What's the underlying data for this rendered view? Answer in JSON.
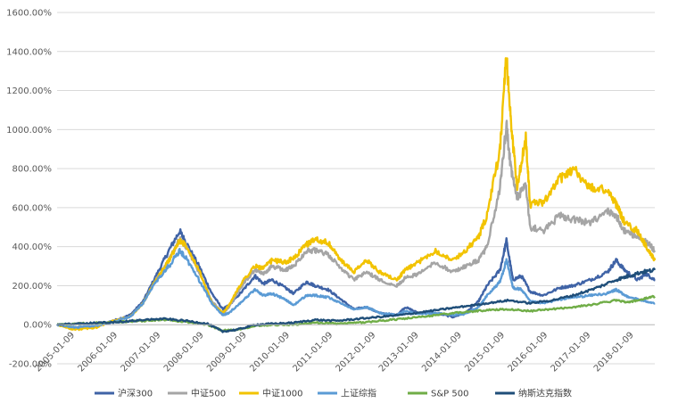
{
  "chart_data": {
    "type": "line",
    "ylim": [
      -200,
      1600
    ],
    "y_ticks": [
      "-200.00%",
      "0.00%",
      "200.00%",
      "400.00%",
      "600.00%",
      "800.00%",
      "1000.00%",
      "1200.00%",
      "1400.00%",
      "1600.00%"
    ],
    "y_tick_values": [
      -200,
      0,
      200,
      400,
      600,
      800,
      1000,
      1200,
      1400,
      1600
    ],
    "x_ticks": [
      "2005-01-09",
      "2006-01-09",
      "2007-01-09",
      "2008-01-09",
      "2009-01-09",
      "2010-01-09",
      "2011-01-09",
      "2012-01-09",
      "2013-01-09",
      "2014-01-09",
      "2015-01-09",
      "2016-01-09",
      "2017-01-09",
      "2018-01-09"
    ],
    "x_tick_values": [
      2005.0,
      2006.0,
      2007.0,
      2008.0,
      2009.0,
      2010.0,
      2011.0,
      2012.0,
      2013.0,
      2014.0,
      2015.0,
      2016.0,
      2017.0,
      2018.0
    ],
    "xlim": [
      2005.0,
      2018.9
    ],
    "grid": "horizontal",
    "legend": "bottom",
    "series": [
      {
        "name": "沪深300",
        "color": "#3F63A6",
        "points": [
          [
            2005.0,
            0
          ],
          [
            2005.4,
            -15
          ],
          [
            2005.9,
            -5
          ],
          [
            2006.3,
            20
          ],
          [
            2006.7,
            50
          ],
          [
            2007.0,
            120
          ],
          [
            2007.3,
            250
          ],
          [
            2007.6,
            380
          ],
          [
            2007.85,
            480
          ],
          [
            2008.0,
            420
          ],
          [
            2008.3,
            300
          ],
          [
            2008.6,
            160
          ],
          [
            2008.85,
            80
          ],
          [
            2009.0,
            100
          ],
          [
            2009.3,
            170
          ],
          [
            2009.6,
            250
          ],
          [
            2009.8,
            210
          ],
          [
            2010.0,
            230
          ],
          [
            2010.3,
            190
          ],
          [
            2010.5,
            160
          ],
          [
            2010.8,
            220
          ],
          [
            2011.0,
            200
          ],
          [
            2011.3,
            180
          ],
          [
            2011.6,
            130
          ],
          [
            2011.9,
            80
          ],
          [
            2012.2,
            90
          ],
          [
            2012.5,
            60
          ],
          [
            2012.9,
            50
          ],
          [
            2013.1,
            90
          ],
          [
            2013.4,
            60
          ],
          [
            2013.8,
            60
          ],
          [
            2014.2,
            40
          ],
          [
            2014.5,
            60
          ],
          [
            2014.8,
            120
          ],
          [
            2015.0,
            200
          ],
          [
            2015.3,
            280
          ],
          [
            2015.45,
            430
          ],
          [
            2015.6,
            230
          ],
          [
            2015.8,
            250
          ],
          [
            2016.0,
            170
          ],
          [
            2016.3,
            150
          ],
          [
            2016.7,
            190
          ],
          [
            2017.0,
            200
          ],
          [
            2017.4,
            230
          ],
          [
            2017.8,
            270
          ],
          [
            2018.0,
            330
          ],
          [
            2018.2,
            280
          ],
          [
            2018.5,
            230
          ],
          [
            2018.7,
            260
          ],
          [
            2018.9,
            230
          ]
        ]
      },
      {
        "name": "中证500",
        "color": "#A5A5A5",
        "points": [
          [
            2005.0,
            0
          ],
          [
            2005.4,
            -20
          ],
          [
            2005.9,
            -10
          ],
          [
            2006.3,
            20
          ],
          [
            2006.7,
            40
          ],
          [
            2007.0,
            110
          ],
          [
            2007.3,
            230
          ],
          [
            2007.6,
            330
          ],
          [
            2007.85,
            440
          ],
          [
            2008.0,
            400
          ],
          [
            2008.3,
            270
          ],
          [
            2008.6,
            120
          ],
          [
            2008.85,
            60
          ],
          [
            2009.0,
            90
          ],
          [
            2009.3,
            200
          ],
          [
            2009.6,
            280
          ],
          [
            2009.8,
            260
          ],
          [
            2010.0,
            300
          ],
          [
            2010.3,
            280
          ],
          [
            2010.5,
            300
          ],
          [
            2010.8,
            380
          ],
          [
            2011.0,
            380
          ],
          [
            2011.3,
            360
          ],
          [
            2011.6,
            290
          ],
          [
            2011.9,
            230
          ],
          [
            2012.2,
            270
          ],
          [
            2012.5,
            230
          ],
          [
            2012.9,
            200
          ],
          [
            2013.1,
            240
          ],
          [
            2013.4,
            260
          ],
          [
            2013.8,
            320
          ],
          [
            2014.2,
            270
          ],
          [
            2014.5,
            300
          ],
          [
            2014.8,
            330
          ],
          [
            2015.0,
            400
          ],
          [
            2015.3,
            700
          ],
          [
            2015.45,
            1030
          ],
          [
            2015.55,
            800
          ],
          [
            2015.7,
            650
          ],
          [
            2015.9,
            720
          ],
          [
            2016.0,
            500
          ],
          [
            2016.3,
            480
          ],
          [
            2016.7,
            560
          ],
          [
            2017.0,
            540
          ],
          [
            2017.4,
            520
          ],
          [
            2017.8,
            580
          ],
          [
            2018.0,
            560
          ],
          [
            2018.2,
            480
          ],
          [
            2018.5,
            450
          ],
          [
            2018.7,
            430
          ],
          [
            2018.9,
            380
          ]
        ]
      },
      {
        "name": "中证1000",
        "color": "#F2C300",
        "points": [
          [
            2005.0,
            0
          ],
          [
            2005.4,
            -25
          ],
          [
            2005.9,
            -15
          ],
          [
            2006.3,
            20
          ],
          [
            2006.7,
            40
          ],
          [
            2007.0,
            110
          ],
          [
            2007.3,
            230
          ],
          [
            2007.6,
            330
          ],
          [
            2007.85,
            430
          ],
          [
            2008.0,
            410
          ],
          [
            2008.3,
            280
          ],
          [
            2008.6,
            110
          ],
          [
            2008.85,
            60
          ],
          [
            2009.0,
            100
          ],
          [
            2009.3,
            220
          ],
          [
            2009.6,
            300
          ],
          [
            2009.8,
            290
          ],
          [
            2010.0,
            330
          ],
          [
            2010.3,
            320
          ],
          [
            2010.5,
            340
          ],
          [
            2010.8,
            410
          ],
          [
            2011.0,
            440
          ],
          [
            2011.3,
            420
          ],
          [
            2011.6,
            330
          ],
          [
            2011.9,
            270
          ],
          [
            2012.2,
            330
          ],
          [
            2012.5,
            270
          ],
          [
            2012.9,
            230
          ],
          [
            2013.1,
            280
          ],
          [
            2013.4,
            320
          ],
          [
            2013.8,
            380
          ],
          [
            2014.2,
            330
          ],
          [
            2014.5,
            380
          ],
          [
            2014.8,
            450
          ],
          [
            2015.0,
            560
          ],
          [
            2015.3,
            900
          ],
          [
            2015.45,
            1380
          ],
          [
            2015.55,
            1050
          ],
          [
            2015.7,
            700
          ],
          [
            2015.9,
            960
          ],
          [
            2016.0,
            620
          ],
          [
            2016.3,
            620
          ],
          [
            2016.7,
            750
          ],
          [
            2017.0,
            800
          ],
          [
            2017.4,
            700
          ],
          [
            2017.8,
            690
          ],
          [
            2018.0,
            620
          ],
          [
            2018.2,
            520
          ],
          [
            2018.5,
            480
          ],
          [
            2018.7,
            400
          ],
          [
            2018.9,
            330
          ]
        ]
      },
      {
        "name": "上证综指",
        "color": "#5B9BD5",
        "points": [
          [
            2005.0,
            0
          ],
          [
            2005.4,
            -15
          ],
          [
            2005.9,
            -5
          ],
          [
            2006.3,
            15
          ],
          [
            2006.7,
            40
          ],
          [
            2007.0,
            110
          ],
          [
            2007.3,
            220
          ],
          [
            2007.6,
            300
          ],
          [
            2007.85,
            380
          ],
          [
            2008.0,
            340
          ],
          [
            2008.3,
            230
          ],
          [
            2008.6,
            110
          ],
          [
            2008.85,
            50
          ],
          [
            2009.0,
            60
          ],
          [
            2009.3,
            120
          ],
          [
            2009.6,
            180
          ],
          [
            2009.8,
            150
          ],
          [
            2010.0,
            160
          ],
          [
            2010.3,
            130
          ],
          [
            2010.5,
            100
          ],
          [
            2010.8,
            150
          ],
          [
            2011.0,
            150
          ],
          [
            2011.3,
            140
          ],
          [
            2011.6,
            110
          ],
          [
            2011.9,
            80
          ],
          [
            2012.2,
            90
          ],
          [
            2012.5,
            60
          ],
          [
            2012.9,
            50
          ],
          [
            2013.1,
            70
          ],
          [
            2013.4,
            55
          ],
          [
            2013.8,
            60
          ],
          [
            2014.2,
            50
          ],
          [
            2014.5,
            55
          ],
          [
            2014.8,
            90
          ],
          [
            2015.0,
            150
          ],
          [
            2015.3,
            220
          ],
          [
            2015.45,
            330
          ],
          [
            2015.6,
            190
          ],
          [
            2015.8,
            180
          ],
          [
            2016.0,
            120
          ],
          [
            2016.3,
            110
          ],
          [
            2016.7,
            130
          ],
          [
            2017.0,
            140
          ],
          [
            2017.4,
            150
          ],
          [
            2017.8,
            160
          ],
          [
            2018.0,
            180
          ],
          [
            2018.2,
            150
          ],
          [
            2018.5,
            130
          ],
          [
            2018.7,
            120
          ],
          [
            2018.9,
            110
          ]
        ]
      },
      {
        "name": "S&P 500",
        "color": "#70AD47",
        "points": [
          [
            2005.0,
            0
          ],
          [
            2005.5,
            5
          ],
          [
            2006.0,
            10
          ],
          [
            2006.5,
            15
          ],
          [
            2007.0,
            20
          ],
          [
            2007.5,
            25
          ],
          [
            2008.0,
            15
          ],
          [
            2008.5,
            0
          ],
          [
            2008.85,
            -30
          ],
          [
            2009.2,
            -25
          ],
          [
            2009.6,
            -5
          ],
          [
            2010.0,
            0
          ],
          [
            2010.5,
            0
          ],
          [
            2011.0,
            10
          ],
          [
            2011.5,
            5
          ],
          [
            2012.0,
            10
          ],
          [
            2012.5,
            20
          ],
          [
            2013.0,
            30
          ],
          [
            2013.5,
            40
          ],
          [
            2014.0,
            55
          ],
          [
            2014.5,
            65
          ],
          [
            2015.0,
            75
          ],
          [
            2015.5,
            80
          ],
          [
            2016.0,
            70
          ],
          [
            2016.5,
            80
          ],
          [
            2017.0,
            90
          ],
          [
            2017.5,
            105
          ],
          [
            2018.0,
            125
          ],
          [
            2018.3,
            115
          ],
          [
            2018.6,
            130
          ],
          [
            2018.9,
            145
          ]
        ]
      },
      {
        "name": "纳斯达克指数",
        "color": "#1F4E79",
        "points": [
          [
            2005.0,
            0
          ],
          [
            2005.5,
            5
          ],
          [
            2006.0,
            10
          ],
          [
            2006.5,
            15
          ],
          [
            2007.0,
            25
          ],
          [
            2007.5,
            30
          ],
          [
            2008.0,
            20
          ],
          [
            2008.5,
            5
          ],
          [
            2008.85,
            -35
          ],
          [
            2009.2,
            -25
          ],
          [
            2009.6,
            0
          ],
          [
            2010.0,
            5
          ],
          [
            2010.5,
            10
          ],
          [
            2011.0,
            25
          ],
          [
            2011.5,
            20
          ],
          [
            2012.0,
            30
          ],
          [
            2012.5,
            40
          ],
          [
            2013.0,
            50
          ],
          [
            2013.5,
            65
          ],
          [
            2014.0,
            80
          ],
          [
            2014.5,
            95
          ],
          [
            2015.0,
            110
          ],
          [
            2015.5,
            125
          ],
          [
            2016.0,
            110
          ],
          [
            2016.5,
            125
          ],
          [
            2017.0,
            150
          ],
          [
            2017.5,
            185
          ],
          [
            2018.0,
            230
          ],
          [
            2018.3,
            250
          ],
          [
            2018.6,
            270
          ],
          [
            2018.9,
            280
          ]
        ]
      }
    ]
  }
}
